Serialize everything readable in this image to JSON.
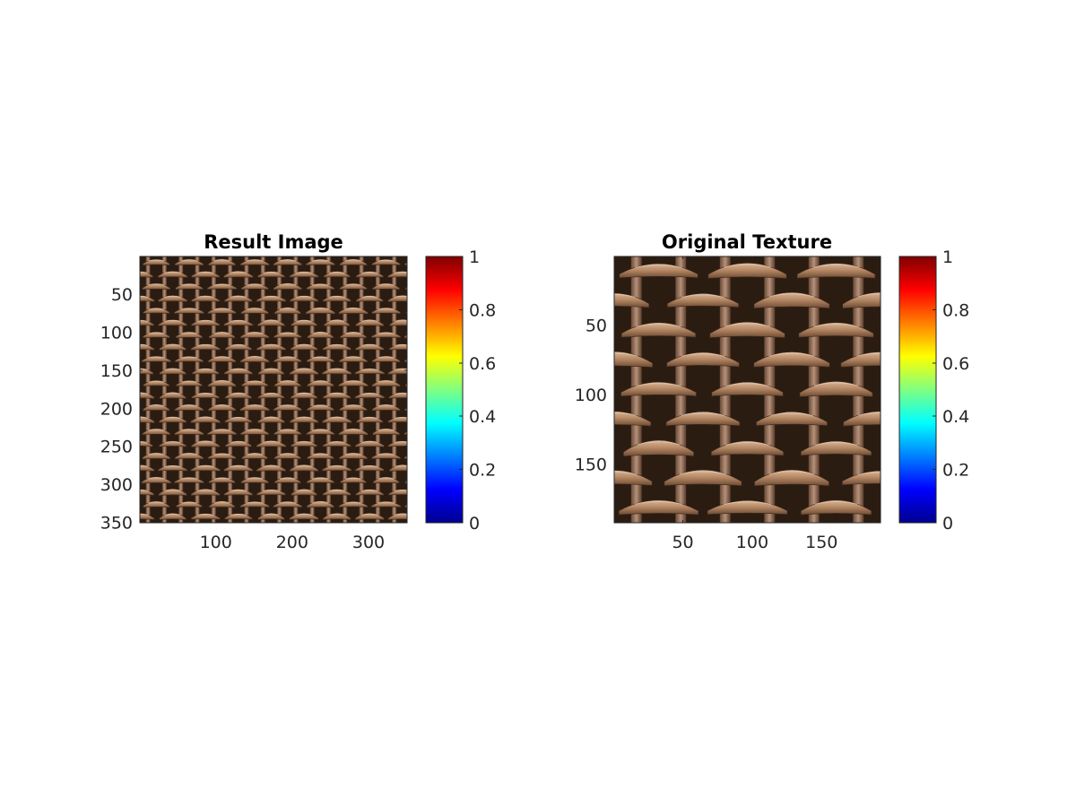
{
  "chart_data": [
    {
      "type": "heatmap",
      "title": "Result Image",
      "image_description_size": [
        350,
        350
      ],
      "xlim": [
        0.5,
        350.5
      ],
      "ylim": [
        0.5,
        350.5
      ],
      "y_direction": "reverse",
      "xticks": [
        100,
        200,
        300
      ],
      "yticks": [
        50,
        100,
        150,
        200,
        250,
        300,
        350
      ],
      "colorbar": {
        "colormap": "jet",
        "limits": [
          0,
          1
        ],
        "ticks": [
          0,
          0.2,
          0.4,
          0.6,
          0.8,
          1
        ],
        "tick_labels": [
          "0",
          "0.2",
          "0.4",
          "0.6",
          "0.8",
          "1"
        ]
      },
      "texture": {
        "period_x": 43,
        "row_count": 22
      }
    },
    {
      "type": "heatmap",
      "title": "Original Texture",
      "image_description_size": [
        192,
        192
      ],
      "xlim": [
        0.5,
        192.5
      ],
      "ylim": [
        0.5,
        192.5
      ],
      "y_direction": "reverse",
      "xticks": [
        50,
        100,
        150
      ],
      "yticks": [
        50,
        100,
        150
      ],
      "colorbar": {
        "colormap": "jet",
        "limits": [
          0,
          1
        ],
        "ticks": [
          0,
          0.2,
          0.4,
          0.6,
          0.8,
          1
        ],
        "tick_labels": [
          "0",
          "0.2",
          "0.4",
          "0.6",
          "0.8",
          "1"
        ]
      },
      "texture": {
        "period_x": 64,
        "row_count": 9
      }
    }
  ],
  "colors": {
    "weave_dark": "#2b1c12",
    "weave_light": "#c49a78",
    "weave_mid": "#9a6e4f",
    "jet": [
      "#00008f",
      "#0000ff",
      "#0080ff",
      "#00ffff",
      "#80ff80",
      "#ffff00",
      "#ff8000",
      "#ff0000",
      "#800000"
    ]
  }
}
